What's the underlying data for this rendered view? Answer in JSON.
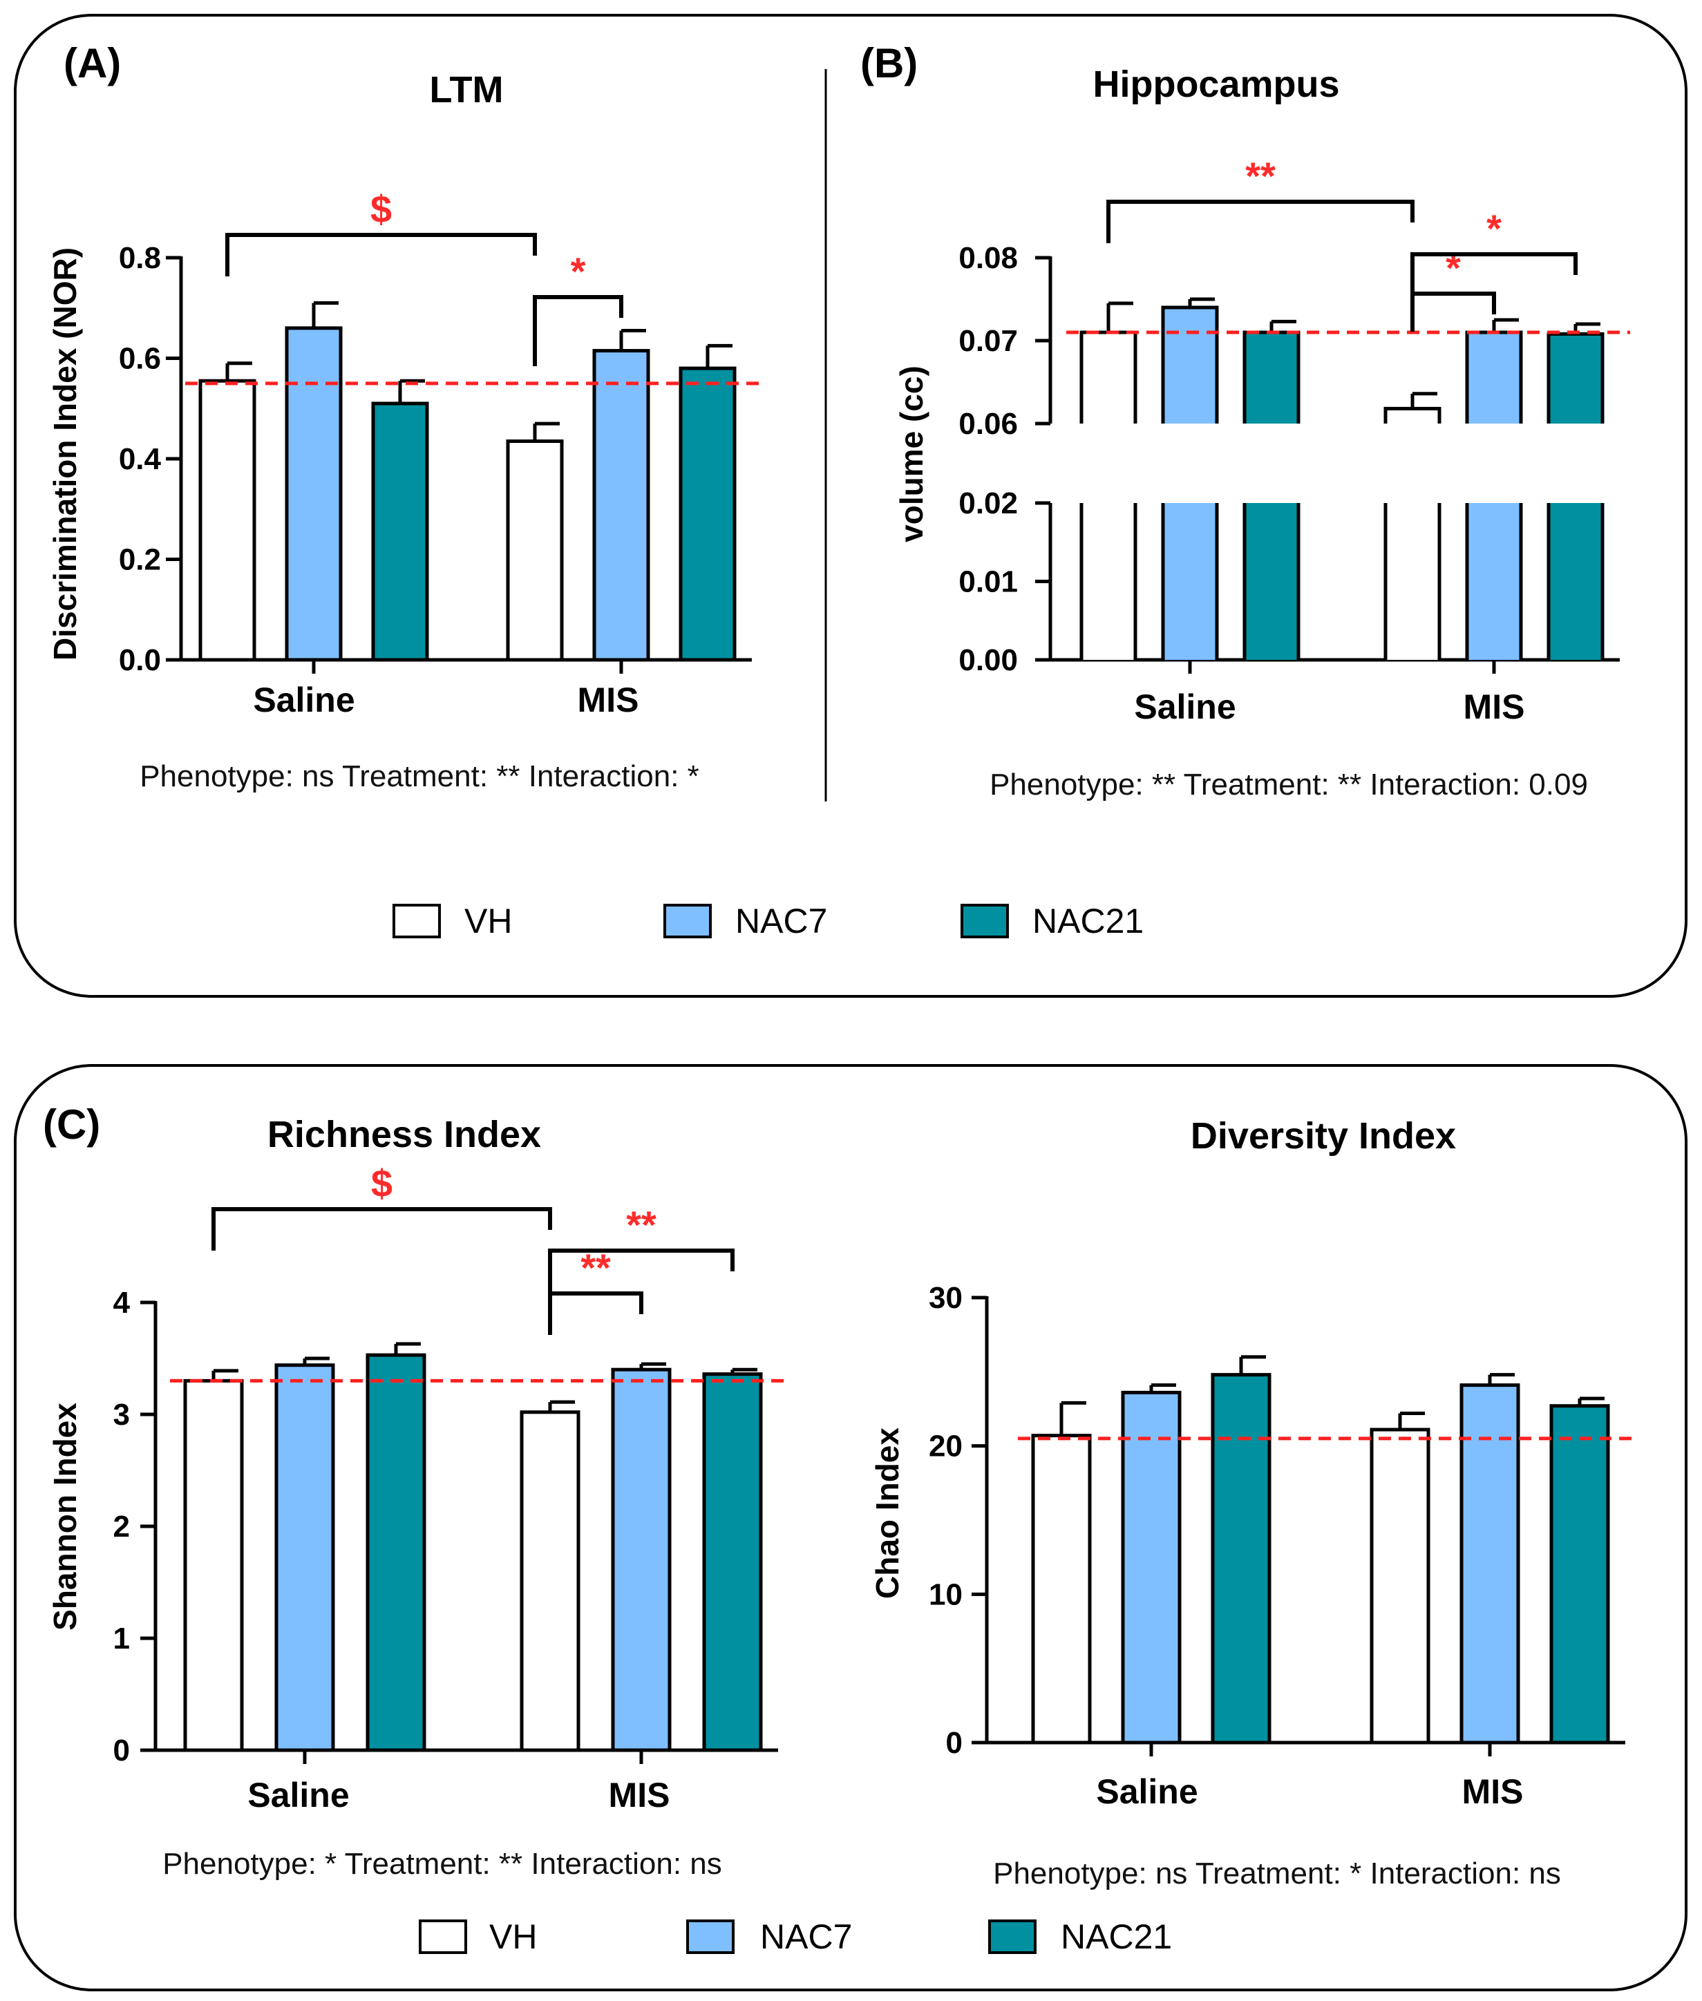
{
  "legend": [
    {
      "label": "VH",
      "color": "#ffffff"
    },
    {
      "label": "NAC7",
      "color": "#7fbfff"
    },
    {
      "label": "NAC21",
      "color": "#00909f"
    }
  ],
  "panel_labels": {
    "A": "(A)",
    "B": "(B)",
    "C": "(C)"
  },
  "chart_data": [
    {
      "id": "A",
      "type": "bar",
      "title": "LTM",
      "ylabel": "Discrimination Index (NOR)",
      "categories": [
        "Saline",
        "MIS"
      ],
      "ylim": [
        0,
        0.8
      ],
      "yticks": [
        "0.0",
        "0.2",
        "0.4",
        "0.6",
        "0.8"
      ],
      "reference_line": 0.55,
      "series": [
        {
          "name": "VH",
          "values": [
            0.555,
            0.435
          ],
          "errors": [
            0.035,
            0.035
          ]
        },
        {
          "name": "NAC7",
          "values": [
            0.66,
            0.615
          ],
          "errors": [
            0.05,
            0.04
          ]
        },
        {
          "name": "NAC21",
          "values": [
            0.51,
            0.58
          ],
          "errors": [
            0.045,
            0.045
          ]
        }
      ],
      "annotations": [
        {
          "text": "$",
          "from": "Saline VH",
          "to": "MIS VH"
        },
        {
          "text": "*",
          "from": "MIS VH",
          "to": "MIS NAC7"
        }
      ],
      "stats": "Phenotype: ns  Treatment: **  Interaction: *"
    },
    {
      "id": "B",
      "type": "bar",
      "title": "Hippocampus",
      "ylabel": "volume (cc)",
      "categories": [
        "Saline",
        "MIS"
      ],
      "axis_break": [
        0.02,
        0.06
      ],
      "yticks": [
        "0.00",
        "0.01",
        "0.02",
        "0.06",
        "0.07",
        "0.08"
      ],
      "reference_line": 0.071,
      "series": [
        {
          "name": "VH",
          "values": [
            0.071,
            0.0618
          ],
          "errors": [
            0.0035,
            0.0018
          ]
        },
        {
          "name": "NAC7",
          "values": [
            0.074,
            0.071
          ],
          "errors": [
            0.001,
            0.0015
          ]
        },
        {
          "name": "NAC21",
          "values": [
            0.071,
            0.0708
          ],
          "errors": [
            0.0013,
            0.0012
          ]
        }
      ],
      "annotations": [
        {
          "text": "**",
          "from": "Saline VH",
          "to": "MIS VH"
        },
        {
          "text": "*",
          "from": "MIS VH",
          "to": "MIS NAC7"
        },
        {
          "text": "*",
          "from": "MIS VH",
          "to": "MIS NAC21"
        }
      ],
      "stats": "Phenotype: **  Treatment: **  Interaction: 0.09"
    },
    {
      "id": "C1",
      "type": "bar",
      "title": "Richness Index",
      "ylabel": "Shannon Index",
      "categories": [
        "Saline",
        "MIS"
      ],
      "ylim": [
        0,
        4
      ],
      "yticks": [
        "0",
        "1",
        "2",
        "3",
        "4"
      ],
      "reference_line": 3.3,
      "series": [
        {
          "name": "VH",
          "values": [
            3.3,
            3.02
          ],
          "errors": [
            0.09,
            0.09
          ]
        },
        {
          "name": "NAC7",
          "values": [
            3.44,
            3.4
          ],
          "errors": [
            0.06,
            0.05
          ]
        },
        {
          "name": "NAC21",
          "values": [
            3.53,
            3.36
          ],
          "errors": [
            0.1,
            0.04
          ]
        }
      ],
      "annotations": [
        {
          "text": "$",
          "from": "Saline VH",
          "to": "MIS VH"
        },
        {
          "text": "**",
          "from": "MIS VH",
          "to": "MIS NAC7"
        },
        {
          "text": "**",
          "from": "MIS VH",
          "to": "MIS NAC21"
        }
      ],
      "stats": "Phenotype: *  Treatment: **  Interaction: ns"
    },
    {
      "id": "C2",
      "type": "bar",
      "title": "Diversity Index",
      "ylabel": "Chao Index",
      "categories": [
        "Saline",
        "MIS"
      ],
      "ylim": [
        0,
        30
      ],
      "yticks": [
        "0",
        "10",
        "20",
        "30"
      ],
      "reference_line": 20.5,
      "series": [
        {
          "name": "VH",
          "values": [
            20.7,
            21.1
          ],
          "errors": [
            2.2,
            1.1
          ]
        },
        {
          "name": "NAC7",
          "values": [
            23.6,
            24.1
          ],
          "errors": [
            0.5,
            0.7
          ]
        },
        {
          "name": "NAC21",
          "values": [
            24.8,
            22.7
          ],
          "errors": [
            1.2,
            0.5
          ]
        }
      ],
      "annotations": [],
      "stats": "Phenotype: ns  Treatment: *  Interaction: ns"
    }
  ]
}
